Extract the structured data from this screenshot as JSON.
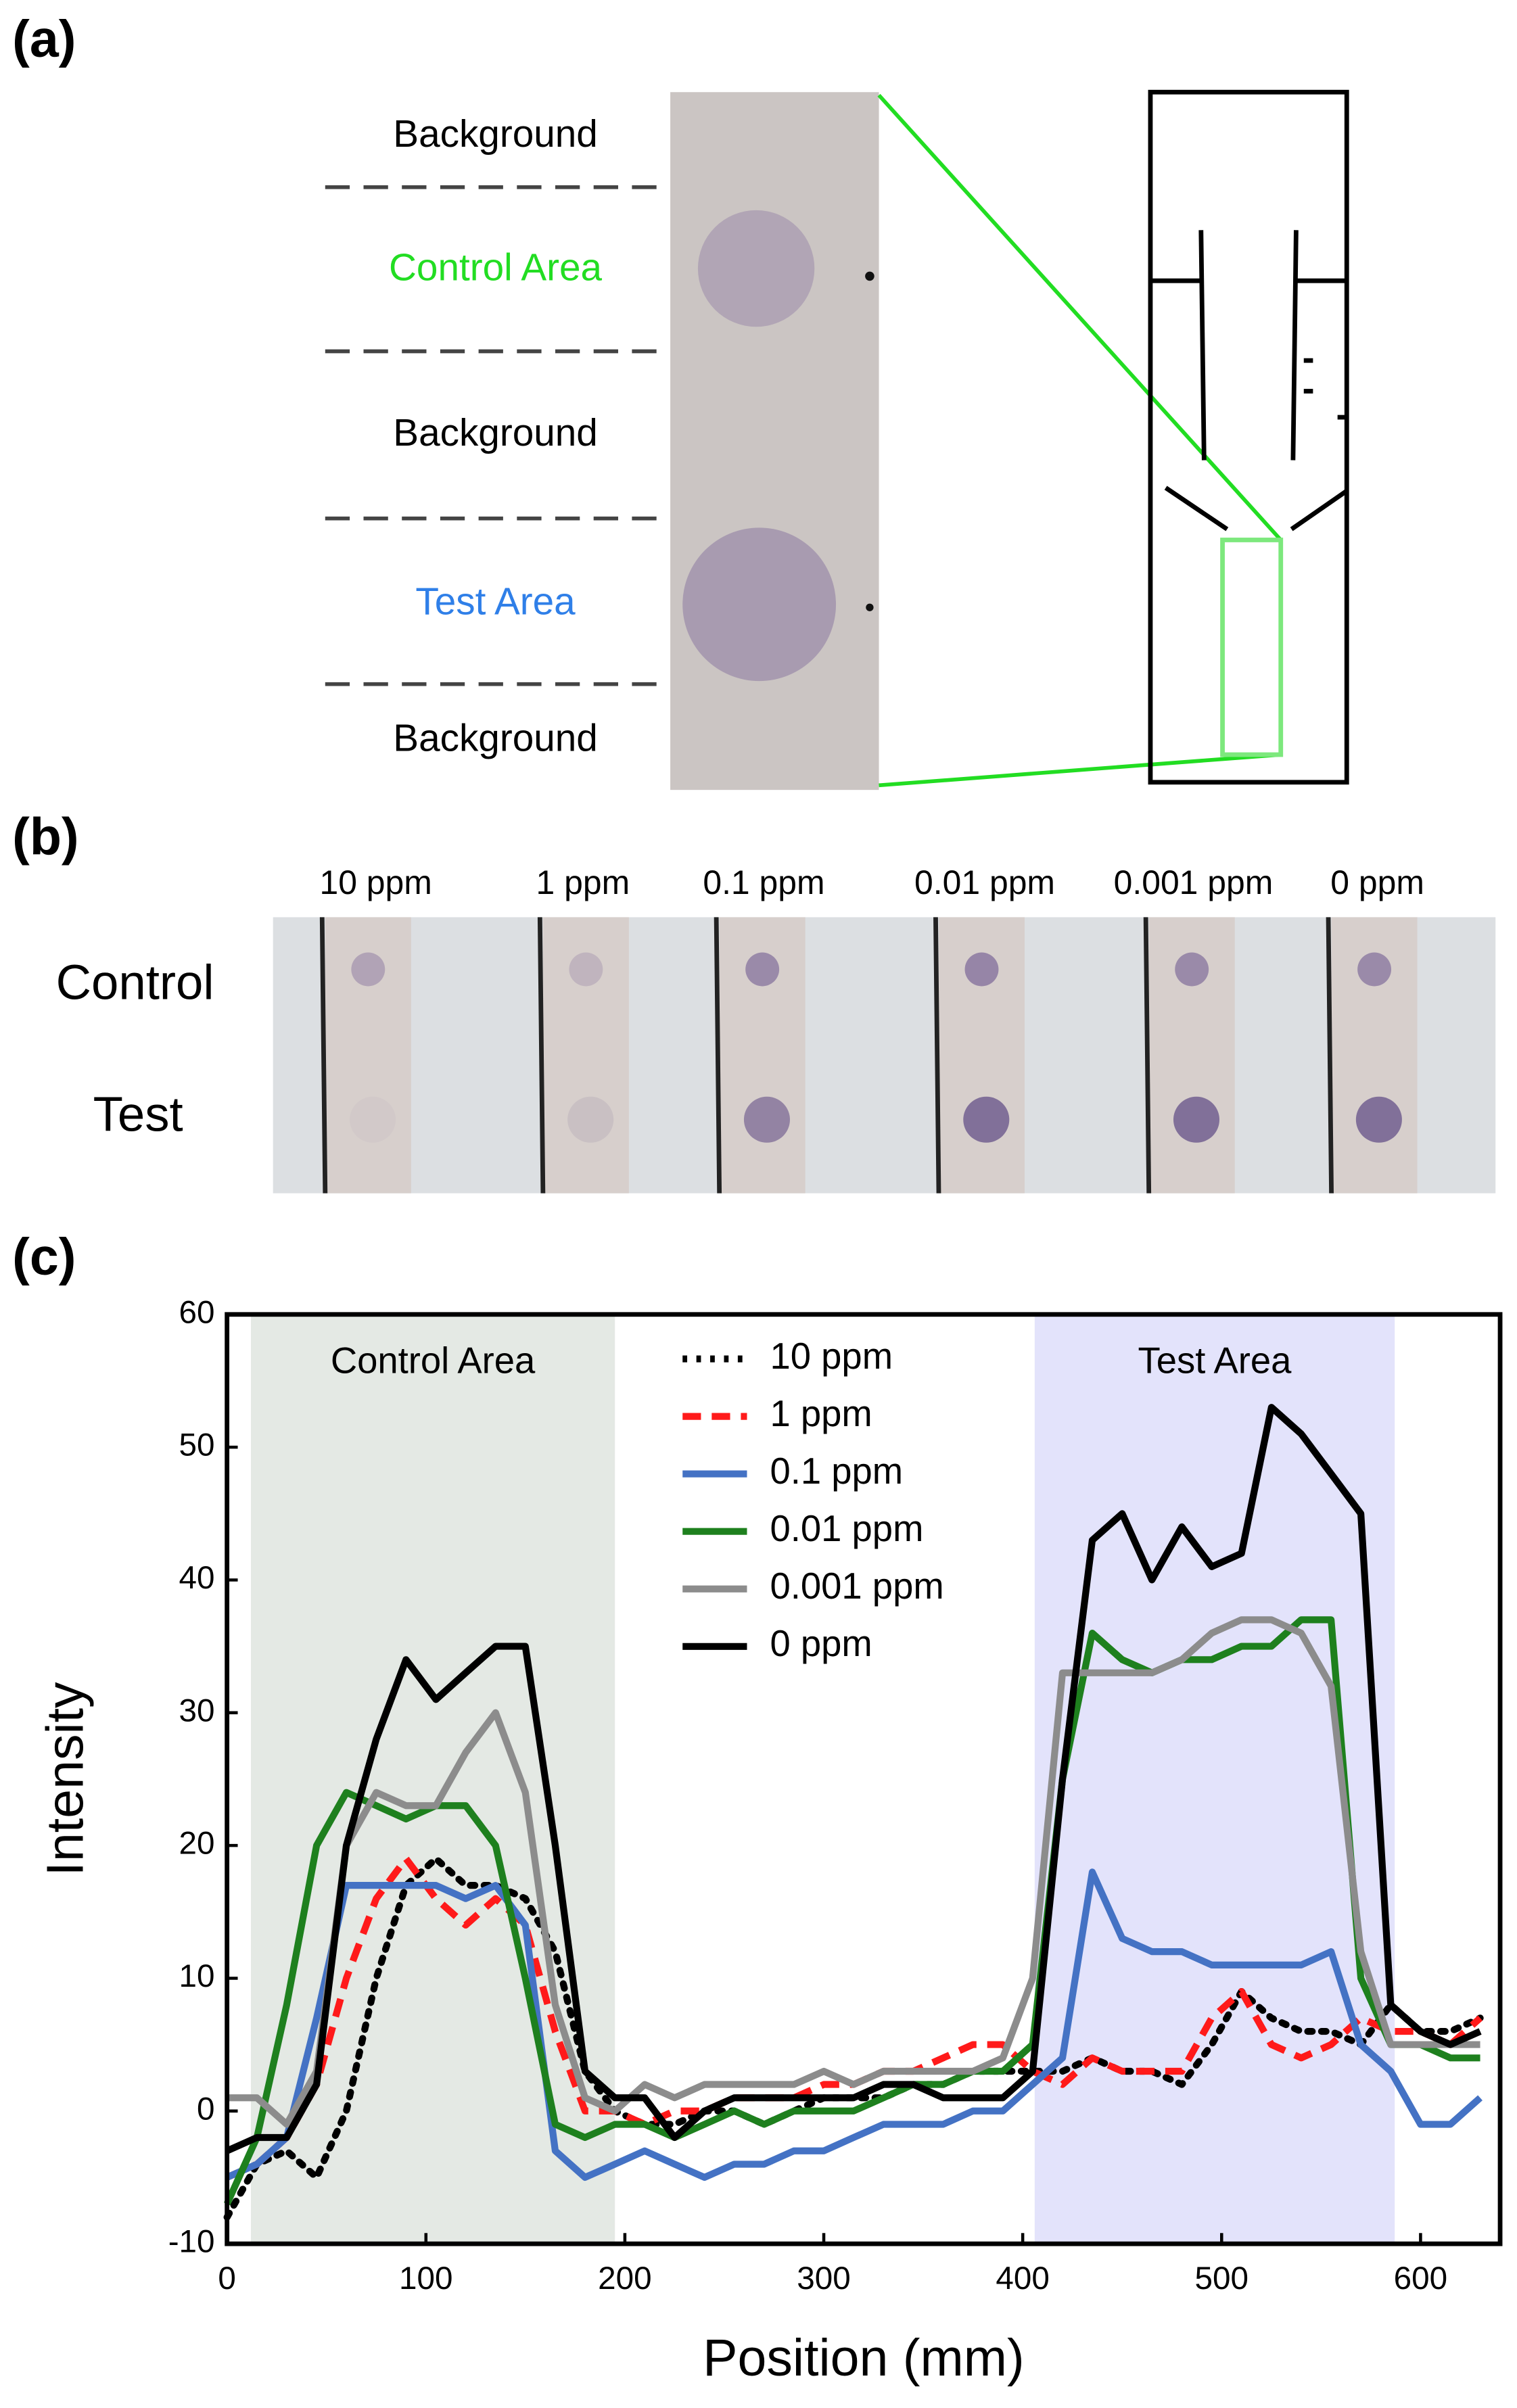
{
  "panel_labels": [
    "(a)",
    "(b)",
    "(c)"
  ],
  "panel_a": {
    "zones": [
      {
        "label": "Background",
        "color": "#000000"
      },
      {
        "label": "Control Area",
        "color": "#22dd22"
      },
      {
        "label": "Background",
        "color": "#000000"
      },
      {
        "label": "Test Area",
        "color": "#2f7fe8"
      },
      {
        "label": "Background",
        "color": "#000000"
      }
    ]
  },
  "panel_b": {
    "concentrations": [
      "10 ppm",
      "1 ppm",
      "0.1 ppm",
      "0.01 ppm",
      "0.001 ppm",
      "0 ppm"
    ],
    "rows": [
      "Control",
      "Test"
    ]
  },
  "chart_data": {
    "type": "line",
    "xlabel": "Position (mm)",
    "ylabel": "Intensity",
    "xlim": [
      0,
      640
    ],
    "ylim": [
      -10,
      60
    ],
    "xticks": [
      0,
      100,
      200,
      300,
      400,
      500,
      600
    ],
    "yticks": [
      -10,
      0,
      10,
      20,
      30,
      40,
      50,
      60
    ],
    "grid": false,
    "legend": "top",
    "regions": [
      {
        "label": "Control Area",
        "range": [
          12,
          195
        ],
        "color": "#e4e9e4"
      },
      {
        "label": "Test Area",
        "range": [
          406,
          587
        ],
        "color": "#e3e3fb"
      }
    ],
    "x": [
      0,
      15,
      30,
      45,
      60,
      75,
      90,
      105,
      120,
      135,
      150,
      165,
      180,
      195,
      210,
      225,
      240,
      255,
      270,
      285,
      300,
      315,
      330,
      345,
      360,
      375,
      390,
      405,
      420,
      435,
      450,
      465,
      480,
      495,
      510,
      525,
      540,
      555,
      570,
      585,
      600,
      615,
      630
    ],
    "series": [
      {
        "name": "10 ppm",
        "color": "#000000",
        "dash": "dotted",
        "values": [
          -8,
          -4,
          -3,
          -5,
          0,
          10,
          17,
          19,
          17,
          17,
          16,
          12,
          3,
          0,
          -1,
          -1,
          0,
          0,
          -1,
          0,
          1,
          1,
          1,
          2,
          2,
          3,
          3,
          3,
          3,
          4,
          3,
          3,
          2,
          5,
          9,
          7,
          6,
          6,
          5,
          8,
          6,
          6,
          7
        ]
      },
      {
        "name": "1 ppm",
        "color": "#ff1a1a",
        "dash": "dashed",
        "values": [
          -5,
          -4,
          -2,
          2,
          10,
          16,
          19,
          16,
          14,
          16,
          14,
          6,
          0,
          0,
          -1,
          0,
          0,
          1,
          1,
          1,
          2,
          2,
          3,
          3,
          4,
          5,
          5,
          3,
          2,
          4,
          3,
          3,
          3,
          7,
          9,
          5,
          4,
          5,
          7,
          6,
          6,
          5,
          7
        ]
      },
      {
        "name": "0.1 ppm",
        "color": "#4472c4",
        "dash": "solid",
        "values": [
          -5,
          -4,
          -2,
          7,
          17,
          17,
          17,
          17,
          16,
          17,
          14,
          -3,
          -5,
          -4,
          -3,
          -4,
          -5,
          -4,
          -4,
          -3,
          -3,
          -2,
          -1,
          -1,
          -1,
          0,
          0,
          2,
          4,
          18,
          13,
          12,
          12,
          11,
          11,
          11,
          11,
          12,
          5,
          3,
          -1,
          -1,
          1
        ]
      },
      {
        "name": "0.01 ppm",
        "color": "#1e801e",
        "dash": "solid",
        "values": [
          -7,
          -2,
          8,
          20,
          24,
          23,
          22,
          23,
          23,
          20,
          10,
          -1,
          -2,
          -1,
          -1,
          -2,
          -1,
          0,
          -1,
          0,
          0,
          0,
          1,
          2,
          2,
          3,
          3,
          5,
          25,
          36,
          34,
          33,
          34,
          34,
          35,
          35,
          37,
          37,
          10,
          5,
          5,
          4,
          4
        ]
      },
      {
        "name": "0.001 ppm",
        "color": "#8c8c8c",
        "dash": "solid",
        "values": [
          1,
          1,
          -1,
          3,
          20,
          24,
          23,
          23,
          27,
          30,
          24,
          8,
          1,
          0,
          2,
          1,
          2,
          2,
          2,
          2,
          3,
          2,
          3,
          3,
          3,
          3,
          4,
          10,
          33,
          33,
          33,
          33,
          34,
          36,
          37,
          37,
          36,
          32,
          12,
          5,
          5,
          5,
          5
        ]
      },
      {
        "name": "0 ppm",
        "color": "#000000",
        "dash": "solid",
        "values": [
          -3,
          -2,
          -2,
          2,
          20,
          28,
          34,
          31,
          33,
          35,
          35,
          20,
          3,
          1,
          1,
          -2,
          0,
          1,
          1,
          1,
          1,
          1,
          2,
          2,
          1,
          1,
          1,
          3,
          25,
          43,
          45,
          40,
          44,
          41,
          42,
          53,
          51,
          48,
          45,
          8,
          6,
          5,
          6
        ]
      }
    ]
  }
}
